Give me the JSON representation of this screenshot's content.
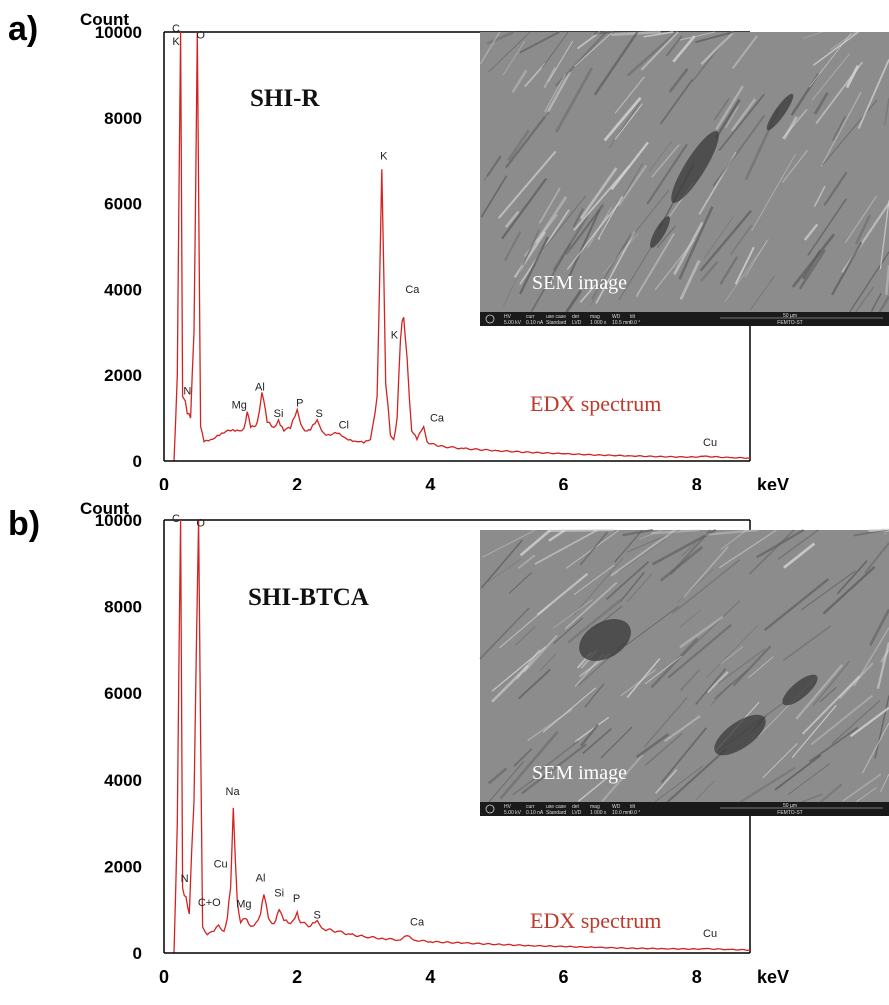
{
  "colors": {
    "spectrum": "#d42222",
    "axis": "#000000"
  },
  "chart_data": [
    {
      "type": "line",
      "panel_label": "a)",
      "sample_label": "SHI-R",
      "ylabel": "Count",
      "xlabel": "keV",
      "xlim": [
        0,
        8.8
      ],
      "ylim": [
        0,
        10000
      ],
      "xticks": [
        0,
        2,
        4,
        6,
        8
      ],
      "yticks": [
        0,
        2000,
        4000,
        6000,
        8000,
        10000
      ],
      "series": [
        {
          "values": [
            [
              0.15,
              0
            ],
            [
              0.2,
              2000
            ],
            [
              0.25,
              10000
            ],
            [
              0.28,
              1500
            ],
            [
              0.32,
              1400
            ],
            [
              0.35,
              1100
            ],
            [
              0.4,
              1000
            ],
            [
              0.45,
              3000
            ],
            [
              0.5,
              10000
            ],
            [
              0.55,
              800
            ],
            [
              0.6,
              450
            ],
            [
              0.7,
              500
            ],
            [
              0.8,
              600
            ],
            [
              0.9,
              650
            ],
            [
              1.0,
              700
            ],
            [
              1.1,
              720
            ],
            [
              1.2,
              760
            ],
            [
              1.25,
              1150
            ],
            [
              1.3,
              780
            ],
            [
              1.35,
              800
            ],
            [
              1.4,
              900
            ],
            [
              1.47,
              1600
            ],
            [
              1.55,
              900
            ],
            [
              1.65,
              780
            ],
            [
              1.72,
              960
            ],
            [
              1.8,
              700
            ],
            [
              1.9,
              760
            ],
            [
              2.0,
              1200
            ],
            [
              2.08,
              780
            ],
            [
              2.15,
              700
            ],
            [
              2.2,
              720
            ],
            [
              2.3,
              960
            ],
            [
              2.4,
              650
            ],
            [
              2.5,
              600
            ],
            [
              2.6,
              640
            ],
            [
              2.7,
              560
            ],
            [
              2.8,
              500
            ],
            [
              2.9,
              450
            ],
            [
              3.0,
              420
            ],
            [
              3.1,
              500
            ],
            [
              3.2,
              1500
            ],
            [
              3.27,
              6800
            ],
            [
              3.33,
              1800
            ],
            [
              3.4,
              600
            ],
            [
              3.45,
              500
            ],
            [
              3.5,
              1000
            ],
            [
              3.55,
              2800
            ],
            [
              3.6,
              3350
            ],
            [
              3.65,
              2400
            ],
            [
              3.72,
              700
            ],
            [
              3.8,
              500
            ],
            [
              3.9,
              800
            ],
            [
              3.95,
              450
            ],
            [
              4.1,
              350
            ],
            [
              4.5,
              290
            ],
            [
              5.0,
              240
            ],
            [
              5.5,
              200
            ],
            [
              6.0,
              170
            ],
            [
              6.5,
              140
            ],
            [
              7.0,
              120
            ],
            [
              7.5,
              100
            ],
            [
              8.0,
              90
            ],
            [
              8.1,
              110
            ],
            [
              8.5,
              80
            ],
            [
              8.8,
              70
            ]
          ]
        }
      ],
      "peak_labels": [
        {
          "text": "C",
          "x": 0.18,
          "y": 10000
        },
        {
          "text": "K",
          "x": 0.18,
          "y": 9700
        },
        {
          "text": "O",
          "x": 0.55,
          "y": 9850
        },
        {
          "text": "N",
          "x": 0.35,
          "y": 1550
        },
        {
          "text": "Mg",
          "x": 1.13,
          "y": 1220
        },
        {
          "text": "Al",
          "x": 1.44,
          "y": 1640
        },
        {
          "text": "Si",
          "x": 1.72,
          "y": 1020
        },
        {
          "text": "P",
          "x": 2.04,
          "y": 1270
        },
        {
          "text": "S",
          "x": 2.33,
          "y": 1020
        },
        {
          "text": "Cl",
          "x": 2.7,
          "y": 760
        },
        {
          "text": "K",
          "x": 3.3,
          "y": 7030
        },
        {
          "text": "Ca",
          "x": 3.73,
          "y": 3920
        },
        {
          "text": "K",
          "x": 3.46,
          "y": 2850
        },
        {
          "text": "Ca",
          "x": 4.1,
          "y": 920
        },
        {
          "text": "Cu",
          "x": 8.2,
          "y": 350
        }
      ],
      "annotation": "EDX spectrum",
      "inset": {
        "label": "SEM image",
        "info": [
          "HV",
          "curr",
          "use case",
          "det",
          "mag",
          "WD",
          "tilt"
        ],
        "values": [
          "5.00 kV",
          "0.10 nA",
          "Standard",
          "LVD",
          "1 000 x",
          "10.5 mm",
          "0.0 °"
        ],
        "scale": "50 µm",
        "brand": "FEMTO-ST"
      }
    },
    {
      "type": "line",
      "panel_label": "b)",
      "sample_label": "SHI-BTCA",
      "ylabel": "Count",
      "xlabel": "keV",
      "xlim": [
        0,
        8.8
      ],
      "ylim": [
        0,
        10000
      ],
      "xticks": [
        0,
        2,
        4,
        6,
        8
      ],
      "yticks": [
        0,
        2000,
        4000,
        6000,
        8000,
        10000
      ],
      "series": [
        {
          "values": [
            [
              0.15,
              0
            ],
            [
              0.2,
              3000
            ],
            [
              0.25,
              10000
            ],
            [
              0.28,
              1500
            ],
            [
              0.33,
              1300
            ],
            [
              0.38,
              900
            ],
            [
              0.45,
              3500
            ],
            [
              0.52,
              10000
            ],
            [
              0.58,
              600
            ],
            [
              0.65,
              420
            ],
            [
              0.75,
              500
            ],
            [
              0.82,
              650
            ],
            [
              0.9,
              500
            ],
            [
              0.95,
              800
            ],
            [
              1.0,
              1500
            ],
            [
              1.04,
              3350
            ],
            [
              1.1,
              1200
            ],
            [
              1.15,
              700
            ],
            [
              1.22,
              800
            ],
            [
              1.3,
              620
            ],
            [
              1.38,
              700
            ],
            [
              1.45,
              900
            ],
            [
              1.5,
              1350
            ],
            [
              1.57,
              800
            ],
            [
              1.65,
              680
            ],
            [
              1.73,
              1000
            ],
            [
              1.8,
              750
            ],
            [
              1.9,
              680
            ],
            [
              2.0,
              950
            ],
            [
              2.05,
              700
            ],
            [
              2.2,
              620
            ],
            [
              2.3,
              750
            ],
            [
              2.4,
              550
            ],
            [
              2.6,
              500
            ],
            [
              2.8,
              430
            ],
            [
              3.0,
              380
            ],
            [
              3.3,
              330
            ],
            [
              3.55,
              300
            ],
            [
              3.65,
              400
            ],
            [
              3.75,
              300
            ],
            [
              4.0,
              260
            ],
            [
              4.5,
              230
            ],
            [
              5.0,
              200
            ],
            [
              5.5,
              170
            ],
            [
              6.0,
              150
            ],
            [
              6.5,
              130
            ],
            [
              7.0,
              110
            ],
            [
              7.5,
              100
            ],
            [
              8.0,
              90
            ],
            [
              8.1,
              100
            ],
            [
              8.5,
              80
            ],
            [
              8.8,
              70
            ]
          ]
        }
      ],
      "peak_labels": [
        {
          "text": "C",
          "x": 0.18,
          "y": 9950
        },
        {
          "text": "O",
          "x": 0.55,
          "y": 9850
        },
        {
          "text": "Na",
          "x": 1.03,
          "y": 3650
        },
        {
          "text": "Cu",
          "x": 0.85,
          "y": 1980
        },
        {
          "text": "N",
          "x": 0.31,
          "y": 1640
        },
        {
          "text": "C+O",
          "x": 0.68,
          "y": 1080
        },
        {
          "text": "Mg",
          "x": 1.2,
          "y": 1050
        },
        {
          "text": "Al",
          "x": 1.45,
          "y": 1650
        },
        {
          "text": "Si",
          "x": 1.73,
          "y": 1300
        },
        {
          "text": "P",
          "x": 1.99,
          "y": 1180
        },
        {
          "text": "S",
          "x": 2.3,
          "y": 800
        },
        {
          "text": "Ca",
          "x": 3.8,
          "y": 640
        },
        {
          "text": "Cu",
          "x": 8.2,
          "y": 370
        }
      ],
      "annotation": "EDX spectrum",
      "inset": {
        "label": "SEM image",
        "info": [
          "HV",
          "curr",
          "use case",
          "det",
          "mag",
          "WD",
          "tilt"
        ],
        "values": [
          "5.00 kV",
          "0.10 nA",
          "Standard",
          "LVD",
          "1 000 x",
          "10.0 mm",
          "0.0 °"
        ],
        "scale": "50 µm",
        "brand": "FEMTO-ST"
      }
    }
  ]
}
